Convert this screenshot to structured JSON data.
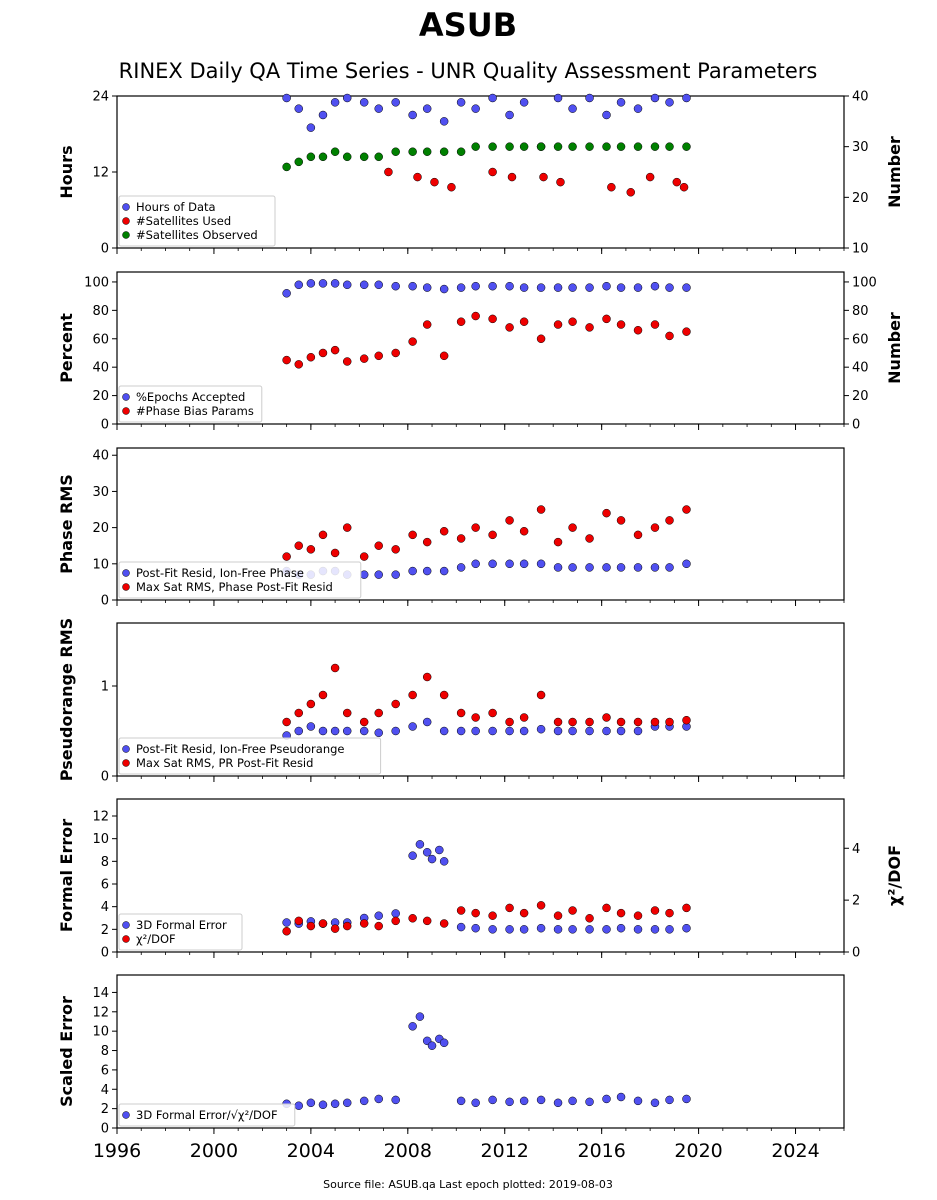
{
  "title": "ASUB",
  "subtitle": "RINEX Daily QA Time Series - UNR Quality Assessment Parameters",
  "footer": "Source file: ASUB.qa Last epoch plotted: 2019-08-03",
  "colors": {
    "blue": "#5050f0",
    "red": "#ee0000",
    "green": "#008000",
    "edge": "#000000"
  },
  "chart_data": [
    {
      "type": "scatter",
      "ylabel": "Hours",
      "ylabel_right": "Number",
      "xlim": [
        1996,
        2026
      ],
      "ylim": [
        0,
        24
      ],
      "ylim_right": [
        10,
        40
      ],
      "yticks": [
        0,
        12,
        24
      ],
      "yticks_right": [
        10,
        20,
        30,
        40
      ],
      "legend": "lower-left",
      "series": [
        {
          "name": "Hours of Data",
          "color": "blue",
          "axis": "left",
          "x": [
            2003.0,
            2003.5,
            2004.0,
            2004.5,
            2005.0,
            2005.5,
            2006.2,
            2006.8,
            2007.5,
            2008.2,
            2008.8,
            2009.5,
            2010.2,
            2010.8,
            2011.5,
            2012.2,
            2012.8,
            2013.5,
            2014.2,
            2014.8,
            2015.5,
            2016.2,
            2016.8,
            2017.5,
            2018.2,
            2018.8,
            2019.5
          ],
          "y": [
            24,
            22,
            19,
            21,
            23,
            24,
            23,
            22,
            23,
            21,
            22,
            20,
            23,
            22,
            24,
            21,
            23,
            16,
            24,
            22,
            24,
            21,
            23,
            22,
            24,
            23,
            24
          ]
        },
        {
          "name": "#Satellites Used",
          "color": "red",
          "axis": "right",
          "x": [
            2007.2,
            2008.4,
            2009.1,
            2009.8,
            2011.5,
            2012.3,
            2013.6,
            2014.3,
            2016.4,
            2017.2,
            2018.0,
            2019.1,
            2019.4
          ],
          "y": [
            25,
            24,
            23,
            22,
            25,
            24,
            24,
            23,
            22,
            21,
            24,
            23,
            22
          ]
        },
        {
          "name": "#Satellites Observed",
          "color": "green",
          "axis": "right",
          "x": [
            2003.0,
            2003.5,
            2004.0,
            2004.5,
            2005.0,
            2005.5,
            2006.2,
            2006.8,
            2007.5,
            2008.2,
            2008.8,
            2009.5,
            2010.2,
            2010.8,
            2011.5,
            2012.2,
            2012.8,
            2013.5,
            2014.2,
            2014.8,
            2015.5,
            2016.2,
            2016.8,
            2017.5,
            2018.2,
            2018.8,
            2019.5
          ],
          "y": [
            26,
            27,
            28,
            28,
            29,
            28,
            28,
            28,
            29,
            29,
            29,
            29,
            29,
            30,
            30,
            30,
            30,
            30,
            30,
            30,
            30,
            30,
            30,
            30,
            30,
            30,
            30
          ]
        }
      ]
    },
    {
      "type": "scatter",
      "ylabel": "Percent",
      "ylabel_right": "Number",
      "xlim": [
        1996,
        2026
      ],
      "ylim": [
        0,
        107
      ],
      "ylim_right": [
        0,
        107
      ],
      "yticks": [
        0,
        20,
        40,
        60,
        80,
        100
      ],
      "yticks_right": [
        0,
        20,
        40,
        60,
        80,
        100
      ],
      "legend": "lower-left",
      "series": [
        {
          "name": "%Epochs Accepted",
          "color": "blue",
          "axis": "left",
          "x": [
            2003.0,
            2003.5,
            2004.0,
            2004.5,
            2005.0,
            2005.5,
            2006.2,
            2006.8,
            2007.5,
            2008.2,
            2008.8,
            2009.5,
            2010.2,
            2010.8,
            2011.5,
            2012.2,
            2012.8,
            2013.5,
            2014.2,
            2014.8,
            2015.5,
            2016.2,
            2016.8,
            2017.5,
            2018.2,
            2018.8,
            2019.5
          ],
          "y": [
            92,
            98,
            99,
            99,
            99,
            98,
            98,
            98,
            97,
            97,
            96,
            95,
            96,
            97,
            97,
            97,
            96,
            96,
            96,
            96,
            96,
            97,
            96,
            96,
            97,
            96,
            96
          ]
        },
        {
          "name": "#Phase Bias Params",
          "color": "red",
          "axis": "right",
          "x": [
            2003.0,
            2003.5,
            2004.0,
            2004.5,
            2005.0,
            2005.5,
            2006.2,
            2006.8,
            2007.5,
            2008.2,
            2008.8,
            2009.5,
            2010.2,
            2010.8,
            2011.5,
            2012.2,
            2012.8,
            2013.5,
            2014.2,
            2014.8,
            2015.5,
            2016.2,
            2016.8,
            2017.5,
            2018.2,
            2018.8,
            2019.5
          ],
          "y": [
            45,
            42,
            47,
            50,
            52,
            44,
            46,
            48,
            50,
            58,
            70,
            48,
            72,
            76,
            74,
            68,
            72,
            60,
            70,
            72,
            68,
            74,
            70,
            66,
            70,
            62,
            65
          ]
        }
      ]
    },
    {
      "type": "scatter",
      "ylabel": "Phase RMS",
      "xlim": [
        1996,
        2026
      ],
      "ylim": [
        0,
        42
      ],
      "yticks": [
        0,
        10,
        20,
        30,
        40
      ],
      "legend": "lower-left",
      "series": [
        {
          "name": "Post-Fit Resid, Ion-Free Phase",
          "color": "blue",
          "axis": "left",
          "x": [
            2003.0,
            2003.5,
            2004.0,
            2004.5,
            2005.0,
            2005.5,
            2006.2,
            2006.8,
            2007.5,
            2008.2,
            2008.8,
            2009.5,
            2010.2,
            2010.8,
            2011.5,
            2012.2,
            2012.8,
            2013.5,
            2014.2,
            2014.8,
            2015.5,
            2016.2,
            2016.8,
            2017.5,
            2018.2,
            2018.8,
            2019.5
          ],
          "y": [
            8,
            7,
            7,
            8,
            8,
            7,
            7,
            7,
            7,
            8,
            8,
            8,
            9,
            10,
            10,
            10,
            10,
            10,
            9,
            9,
            9,
            9,
            9,
            9,
            9,
            9,
            10
          ]
        },
        {
          "name": "Max Sat RMS, Phase Post-Fit Resid",
          "color": "red",
          "axis": "left",
          "x": [
            2003.0,
            2003.5,
            2004.0,
            2004.5,
            2005.0,
            2005.5,
            2006.2,
            2006.8,
            2007.5,
            2008.2,
            2008.8,
            2009.5,
            2010.2,
            2010.8,
            2011.5,
            2012.2,
            2012.8,
            2013.5,
            2014.2,
            2014.8,
            2015.5,
            2016.2,
            2016.8,
            2017.5,
            2018.2,
            2018.8,
            2019.5
          ],
          "y": [
            12,
            15,
            14,
            18,
            13,
            20,
            12,
            15,
            14,
            18,
            16,
            19,
            17,
            20,
            18,
            22,
            19,
            25,
            16,
            20,
            17,
            24,
            22,
            18,
            20,
            22,
            25
          ]
        }
      ]
    },
    {
      "type": "scatter",
      "ylabel": "Pseudorange RMS",
      "xlim": [
        1996,
        2026
      ],
      "ylim": [
        0,
        1.7
      ],
      "yticks": [
        0,
        1
      ],
      "legend": "lower-left",
      "series": [
        {
          "name": "Post-Fit Resid, Ion-Free Pseudorange",
          "color": "blue",
          "axis": "left",
          "x": [
            2003.0,
            2003.5,
            2004.0,
            2004.5,
            2005.0,
            2005.5,
            2006.2,
            2006.8,
            2007.5,
            2008.2,
            2008.8,
            2009.5,
            2010.2,
            2010.8,
            2011.5,
            2012.2,
            2012.8,
            2013.5,
            2014.2,
            2014.8,
            2015.5,
            2016.2,
            2016.8,
            2017.5,
            2018.2,
            2018.8,
            2019.5
          ],
          "y": [
            0.45,
            0.5,
            0.55,
            0.5,
            0.5,
            0.5,
            0.5,
            0.48,
            0.5,
            0.55,
            0.6,
            0.5,
            0.5,
            0.5,
            0.5,
            0.5,
            0.5,
            0.52,
            0.5,
            0.5,
            0.5,
            0.5,
            0.5,
            0.5,
            0.55,
            0.55,
            0.55
          ]
        },
        {
          "name": "Max Sat RMS, PR Post-Fit Resid",
          "color": "red",
          "axis": "left",
          "x": [
            2003.0,
            2003.5,
            2004.0,
            2004.5,
            2005.0,
            2005.5,
            2006.2,
            2006.8,
            2007.5,
            2008.2,
            2008.8,
            2009.5,
            2010.2,
            2010.8,
            2011.5,
            2012.2,
            2012.8,
            2013.5,
            2014.2,
            2014.8,
            2015.5,
            2016.2,
            2016.8,
            2017.5,
            2018.2,
            2018.8,
            2019.5
          ],
          "y": [
            0.6,
            0.7,
            0.8,
            0.9,
            1.2,
            0.7,
            0.6,
            0.7,
            0.8,
            0.9,
            1.1,
            0.9,
            0.7,
            0.65,
            0.7,
            0.6,
            0.65,
            0.9,
            0.6,
            0.6,
            0.6,
            0.65,
            0.6,
            0.6,
            0.6,
            0.6,
            0.62
          ]
        }
      ]
    },
    {
      "type": "scatter",
      "ylabel": "Formal Error",
      "ylabel_right": "χ²/DOF",
      "xlim": [
        1996,
        2026
      ],
      "ylim": [
        0,
        13.5
      ],
      "ylim_right": [
        0,
        5.9
      ],
      "yticks": [
        0,
        2,
        4,
        6,
        8,
        10,
        12
      ],
      "yticks_right": [
        0,
        2,
        4
      ],
      "legend": "lower-left",
      "series": [
        {
          "name": "3D Formal Error",
          "color": "blue",
          "axis": "left",
          "x": [
            2003.0,
            2003.5,
            2004.0,
            2004.5,
            2005.0,
            2005.5,
            2006.2,
            2006.8,
            2007.5,
            2008.2,
            2008.5,
            2008.8,
            2009.0,
            2009.3,
            2009.5,
            2010.2,
            2010.8,
            2011.5,
            2012.2,
            2012.8,
            2013.5,
            2014.2,
            2014.8,
            2015.5,
            2016.2,
            2016.8,
            2017.5,
            2018.2,
            2018.8,
            2019.5
          ],
          "y": [
            2.6,
            2.5,
            2.7,
            2.5,
            2.6,
            2.6,
            3.0,
            3.2,
            3.4,
            8.5,
            9.5,
            8.8,
            8.2,
            9.0,
            8.0,
            2.2,
            2.1,
            2.0,
            2.0,
            2.0,
            2.1,
            2.0,
            2.0,
            2.0,
            2.0,
            2.1,
            2.0,
            2.0,
            2.0,
            2.1
          ]
        },
        {
          "name": "χ²/DOF",
          "color": "red",
          "axis": "right",
          "x": [
            2003.0,
            2003.5,
            2004.0,
            2004.5,
            2005.0,
            2005.5,
            2006.2,
            2006.8,
            2007.5,
            2008.2,
            2008.8,
            2009.5,
            2010.2,
            2010.8,
            2011.5,
            2012.2,
            2012.8,
            2013.5,
            2014.2,
            2014.8,
            2015.5,
            2016.2,
            2016.8,
            2017.5,
            2018.2,
            2018.8,
            2019.5
          ],
          "y": [
            0.8,
            1.2,
            1.0,
            1.1,
            0.9,
            1.0,
            1.1,
            1.0,
            1.2,
            1.3,
            1.2,
            1.1,
            1.6,
            1.5,
            1.4,
            1.7,
            1.5,
            1.8,
            1.4,
            1.6,
            1.3,
            1.7,
            1.5,
            1.4,
            1.6,
            1.5,
            1.7
          ]
        }
      ]
    },
    {
      "type": "scatter",
      "ylabel": "Scaled Error",
      "xlim": [
        1996,
        2026
      ],
      "ylim": [
        0,
        15.8
      ],
      "yticks": [
        0,
        2,
        4,
        6,
        8,
        10,
        12,
        14
      ],
      "legend": "lower-left",
      "series": [
        {
          "name": "3D Formal Error/√χ²/DOF",
          "color": "blue",
          "axis": "left",
          "x": [
            2003.0,
            2003.5,
            2004.0,
            2004.5,
            2005.0,
            2005.5,
            2006.2,
            2006.8,
            2007.5,
            2008.2,
            2008.5,
            2008.8,
            2009.0,
            2009.3,
            2009.5,
            2010.2,
            2010.8,
            2011.5,
            2012.2,
            2012.8,
            2013.5,
            2014.2,
            2014.8,
            2015.5,
            2016.2,
            2016.8,
            2017.5,
            2018.2,
            2018.8,
            2019.5
          ],
          "y": [
            2.5,
            2.3,
            2.6,
            2.4,
            2.5,
            2.6,
            2.8,
            3.0,
            2.9,
            10.5,
            11.5,
            9.0,
            8.5,
            9.2,
            8.8,
            2.8,
            2.6,
            2.9,
            2.7,
            2.8,
            2.9,
            2.6,
            2.8,
            2.7,
            3.0,
            3.2,
            2.8,
            2.6,
            2.9,
            3.0
          ]
        }
      ]
    }
  ],
  "xaxis": {
    "ticks": [
      1996,
      2000,
      2004,
      2008,
      2012,
      2016,
      2020,
      2024
    ]
  }
}
